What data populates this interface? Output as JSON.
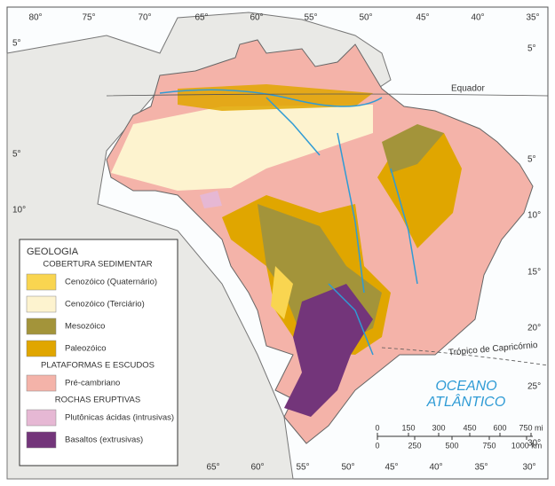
{
  "top_longitudes": [
    "80°",
    "75°",
    "70°",
    "65°",
    "60°",
    "55°",
    "50°",
    "45°",
    "40°",
    "35°"
  ],
  "bottom_longitudes": [
    "65°",
    "60°",
    "55°",
    "50°",
    "45°",
    "40°",
    "35°",
    "30°"
  ],
  "left_latitudes": [
    "5°",
    "5°",
    "10°"
  ],
  "right_latitudes": [
    "5°",
    "5°",
    "10°",
    "15°",
    "20°",
    "25°",
    "30°"
  ],
  "lines": {
    "equator": "Equador",
    "tropic": "Trópico de Capricórnio"
  },
  "ocean": [
    "OCEANO",
    "ATLÂNTICO"
  ],
  "scale": {
    "mi": [
      "0",
      "150",
      "300",
      "450",
      "600",
      "750 mi"
    ],
    "km": [
      "0",
      "250",
      "500",
      "750",
      "1000 km"
    ]
  },
  "legend": {
    "title": "GEOLOGIA",
    "groups": [
      {
        "heading": "COBERTURA SEDIMENTAR",
        "items": [
          {
            "label": "Cenozóico (Quaternário)",
            "color": "#f9d550"
          },
          {
            "label": "Cenozóico (Terciário)",
            "color": "#fdf3cf"
          },
          {
            "label": "Mesozóico",
            "color": "#a3943a"
          },
          {
            "label": "Paleozóico",
            "color": "#e0a600"
          }
        ]
      },
      {
        "heading": "PLATAFORMAS E ESCUDOS",
        "items": [
          {
            "label": "Pré-cambriano",
            "color": "#f4b3a9"
          }
        ]
      },
      {
        "heading": "ROCHAS ERUPTIVAS",
        "items": [
          {
            "label": "Plutônicas ácidas (intrusivas)",
            "color": "#e6b8d4"
          },
          {
            "label": "Basaltos (extrusivas)",
            "color": "#73357a"
          }
        ]
      }
    ]
  }
}
